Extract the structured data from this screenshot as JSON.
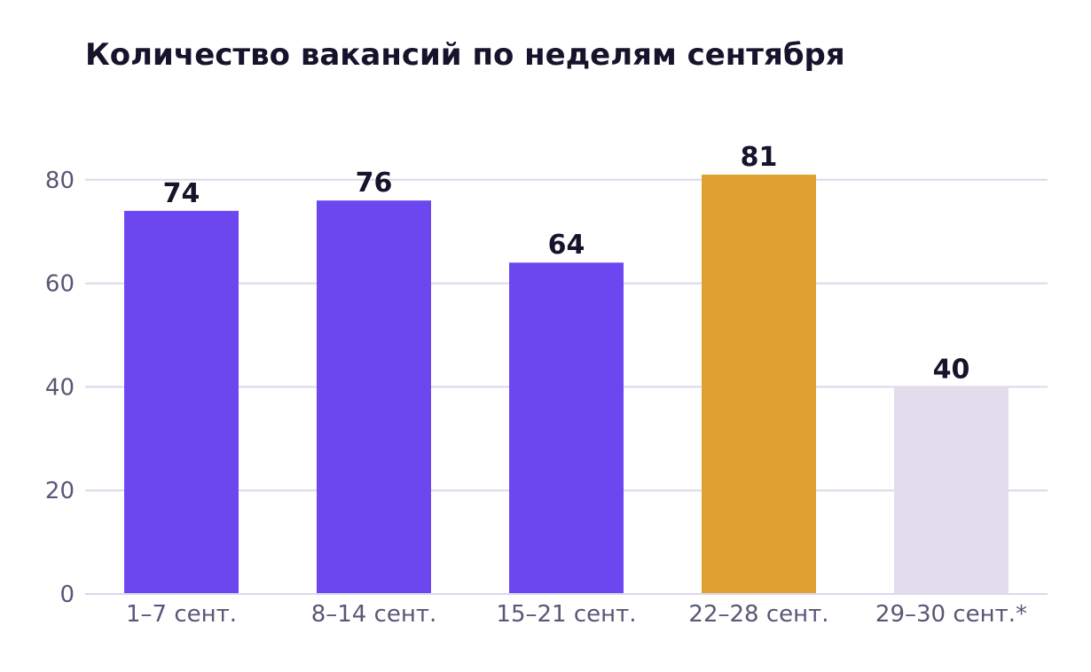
{
  "chart_data": {
    "type": "bar",
    "title": "Количество вакансий по неделям сентября",
    "xlabel": "",
    "ylabel": "",
    "categories": [
      "1–7 сент.",
      "8–14 сент.",
      "15–21 сент.",
      "22–28 сент.",
      "29–30 сент.*"
    ],
    "values": [
      74,
      76,
      64,
      81,
      40
    ],
    "bar_colors": [
      "#6c47f0",
      "#6c47f0",
      "#6c47f0",
      "#dea131",
      "#e1dded"
    ],
    "ylim": [
      0,
      90
    ],
    "yticks": [
      0,
      20,
      40,
      60,
      80
    ],
    "grid": true,
    "legend": "none"
  }
}
